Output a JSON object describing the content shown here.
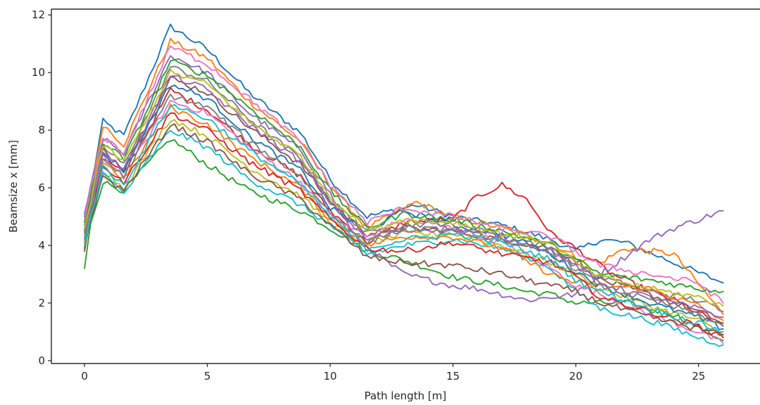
{
  "chart_data": {
    "type": "line",
    "title": "",
    "xlabel": "Path length [m]",
    "ylabel": "Beamsize x [mm]",
    "xlim": [
      -1.35,
      27.5
    ],
    "ylim": [
      -0.1,
      12.2
    ],
    "xticks": [
      0,
      5,
      10,
      15,
      20,
      25
    ],
    "yticks": [
      0,
      2,
      4,
      6,
      8,
      10,
      12
    ],
    "grid": false,
    "legend": "none",
    "colors": [
      "#1f77b4",
      "#ff7f0e",
      "#2ca02c",
      "#d62728",
      "#9467bd",
      "#8c564b",
      "#e377c2",
      "#7f7f7f",
      "#bcbd22",
      "#17becf"
    ],
    "series": [
      {
        "x": [
          0,
          0.25,
          0.75,
          1.6,
          3.5,
          5.0,
          6.7,
          8.8,
          10.0,
          11.5,
          13.5,
          15.0,
          17.0,
          19.0,
          20.0,
          21.0,
          22.0,
          24.0,
          26.0
        ],
        "y": [
          5.0,
          6.0,
          8.3,
          7.8,
          11.6,
          10.8,
          9.3,
          7.9,
          6.3,
          5.0,
          5.4,
          5.0,
          4.7,
          4.2,
          3.8,
          4.2,
          4.1,
          3.4,
          2.7
        ]
      },
      {
        "x": [
          0,
          0.25,
          0.75,
          1.6,
          3.5,
          5.0,
          6.7,
          8.8,
          10.0,
          11.5,
          13.5,
          15.0,
          17.0,
          19.0,
          20.0,
          21.0,
          22.0,
          24.0,
          26.0
        ],
        "y": [
          4.2,
          5.8,
          8.2,
          7.5,
          11.1,
          10.5,
          9.0,
          7.6,
          6.1,
          4.6,
          5.5,
          5.0,
          4.6,
          4.1,
          3.6,
          3.4,
          3.9,
          3.7,
          1.6
        ]
      },
      {
        "x": [
          0,
          0.25,
          0.75,
          1.6,
          3.5,
          5.0,
          6.7,
          8.8,
          10.0,
          11.5,
          13.0,
          15.0,
          17.0,
          18.0,
          19.0,
          20.0,
          22.0,
          24.0,
          26.0
        ],
        "y": [
          3.2,
          4.8,
          6.2,
          5.9,
          7.7,
          6.8,
          5.9,
          5.2,
          4.6,
          3.8,
          3.5,
          2.9,
          2.6,
          2.4,
          2.3,
          2.0,
          2.0,
          1.6,
          0.7
        ]
      },
      {
        "x": [
          0,
          0.25,
          0.75,
          1.6,
          3.5,
          5.0,
          6.7,
          8.8,
          10.0,
          11.5,
          13.0,
          15.0,
          16.0,
          17.0,
          18.0,
          19.0,
          20.0,
          21.5,
          22.5,
          24.0,
          26.0
        ],
        "y": [
          4.5,
          5.5,
          7.0,
          6.5,
          9.4,
          8.7,
          7.5,
          6.4,
          5.2,
          4.1,
          4.8,
          4.9,
          5.7,
          6.1,
          5.6,
          4.4,
          3.9,
          3.0,
          2.6,
          2.1,
          1.2
        ]
      },
      {
        "x": [
          0,
          0.25,
          0.75,
          1.6,
          3.5,
          5.0,
          6.7,
          8.8,
          10.0,
          11.0,
          12.0,
          13.0,
          14.0,
          15.0,
          16.0,
          17.0,
          18.0,
          19.0,
          20.0,
          21.0,
          22.0,
          23.0,
          24.0,
          25.0,
          26.0
        ],
        "y": [
          5.1,
          6.0,
          7.7,
          7.2,
          10.6,
          10.0,
          8.6,
          7.3,
          5.8,
          4.3,
          3.6,
          3.0,
          2.8,
          2.6,
          2.5,
          2.3,
          2.1,
          2.2,
          2.3,
          3.0,
          3.6,
          4.2,
          4.6,
          4.9,
          5.2
        ]
      },
      {
        "x": [
          0,
          0.25,
          0.75,
          1.6,
          3.5,
          5.0,
          6.7,
          8.8,
          10.0,
          11.5,
          13.0,
          15.0,
          17.0,
          19.0,
          20.0,
          21.0,
          23.0,
          25.0,
          26.0
        ],
        "y": [
          4.7,
          5.3,
          7.3,
          6.7,
          9.8,
          9.3,
          8.1,
          6.8,
          5.5,
          4.4,
          4.6,
          4.5,
          4.2,
          3.9,
          3.5,
          2.8,
          2.3,
          1.7,
          1.3
        ]
      },
      {
        "x": [
          0,
          0.25,
          0.75,
          1.6,
          3.5,
          5.0,
          6.7,
          8.8,
          10.0,
          11.5,
          13.0,
          15.0,
          17.0,
          19.0,
          20.0,
          21.0,
          23.0,
          25.0,
          26.0
        ],
        "y": [
          3.9,
          5.2,
          7.1,
          6.4,
          9.0,
          8.6,
          7.4,
          6.2,
          5.0,
          4.3,
          4.9,
          4.6,
          4.1,
          3.2,
          2.6,
          2.3,
          1.6,
          1.0,
          0.6
        ]
      },
      {
        "x": [
          0,
          0.25,
          0.75,
          1.6,
          3.5,
          5.0,
          6.7,
          8.8,
          10.0,
          11.5,
          13.0,
          15.0,
          17.0,
          19.0,
          20.0,
          21.0,
          23.0,
          25.0,
          26.0
        ],
        "y": [
          4.4,
          5.5,
          7.4,
          6.8,
          10.2,
          9.7,
          8.4,
          7.0,
          5.6,
          4.4,
          4.7,
          4.8,
          4.4,
          3.9,
          3.3,
          2.9,
          2.4,
          2.1,
          1.7
        ]
      },
      {
        "x": [
          0,
          0.25,
          0.75,
          1.6,
          3.5,
          5.0,
          6.7,
          8.8,
          10.0,
          11.5,
          13.0,
          15.0,
          17.0,
          19.0,
          20.0,
          21.0,
          23.0,
          25.0,
          26.0
        ],
        "y": [
          4.0,
          5.0,
          6.6,
          6.0,
          8.4,
          7.8,
          6.7,
          5.7,
          4.8,
          4.1,
          4.4,
          4.4,
          4.0,
          3.4,
          3.0,
          2.5,
          1.9,
          1.4,
          0.9
        ]
      },
      {
        "x": [
          0,
          0.25,
          0.75,
          1.6,
          3.5,
          5.0,
          6.7,
          8.8,
          10.0,
          11.5,
          13.0,
          15.0,
          17.0,
          19.0,
          20.0,
          21.0,
          23.0,
          25.0,
          26.0
        ],
        "y": [
          4.3,
          4.9,
          6.5,
          5.8,
          8.0,
          7.4,
          6.3,
          5.4,
          4.7,
          3.7,
          4.0,
          4.2,
          3.9,
          3.2,
          2.4,
          1.8,
          1.4,
          0.8,
          0.55
        ]
      },
      {
        "x": [
          0,
          0.25,
          0.75,
          1.6,
          3.5,
          5.0,
          6.7,
          8.8,
          10.0,
          11.5,
          13.0,
          15.0,
          17.0,
          19.0,
          20.0,
          21.0,
          23.0,
          25.0,
          26.0
        ],
        "y": [
          4.6,
          5.6,
          7.2,
          6.6,
          9.6,
          9.1,
          7.8,
          6.6,
          5.3,
          4.5,
          5.2,
          4.7,
          4.4,
          3.7,
          3.1,
          2.6,
          2.0,
          1.5,
          1.1
        ]
      },
      {
        "x": [
          0,
          0.25,
          0.75,
          1.6,
          3.5,
          5.0,
          6.7,
          8.8,
          10.0,
          11.5,
          13.0,
          15.0,
          17.0,
          19.0,
          20.0,
          21.0,
          23.0,
          25.0,
          26.0
        ],
        "y": [
          4.1,
          5.3,
          6.9,
          6.3,
          8.8,
          8.2,
          7.1,
          6.0,
          4.9,
          4.0,
          4.3,
          4.3,
          3.9,
          3.0,
          2.7,
          2.6,
          2.5,
          1.9,
          1.4
        ]
      },
      {
        "x": [
          0,
          0.25,
          0.75,
          1.6,
          3.5,
          5.0,
          6.7,
          8.8,
          10.0,
          11.5,
          13.0,
          15.0,
          17.0,
          19.0,
          20.0,
          21.0,
          23.0,
          25.0,
          26.0
        ],
        "y": [
          4.8,
          5.7,
          7.6,
          7.0,
          10.4,
          9.9,
          8.8,
          7.4,
          5.9,
          4.6,
          5.1,
          4.9,
          4.5,
          4.0,
          3.5,
          3.0,
          2.8,
          2.5,
          2.4
        ]
      },
      {
        "x": [
          0,
          0.25,
          0.75,
          1.6,
          3.5,
          5.0,
          6.7,
          8.8,
          10.0,
          11.5,
          13.0,
          15.0,
          17.0,
          19.0,
          20.0,
          21.0,
          23.0,
          25.0,
          26.0
        ],
        "y": [
          3.8,
          5.1,
          6.8,
          6.2,
          8.6,
          8.0,
          6.9,
          5.9,
          4.9,
          3.9,
          3.8,
          4.1,
          3.7,
          3.4,
          2.9,
          2.2,
          1.7,
          1.2,
          0.8
        ]
      },
      {
        "x": [
          0,
          0.25,
          0.75,
          1.6,
          3.5,
          5.0,
          6.7,
          8.8,
          10.0,
          11.5,
          13.0,
          15.0,
          17.0,
          19.0,
          20.0,
          21.0,
          23.0,
          25.0,
          26.0
        ],
        "y": [
          4.5,
          5.4,
          7.3,
          6.6,
          9.9,
          9.4,
          8.2,
          6.9,
          5.5,
          4.2,
          4.5,
          4.6,
          4.3,
          3.8,
          3.3,
          2.7,
          2.2,
          1.8,
          1.5
        ]
      },
      {
        "x": [
          0,
          0.25,
          0.75,
          1.6,
          3.5,
          5.0,
          6.7,
          8.8,
          10.0,
          11.5,
          13.0,
          15.0,
          17.0,
          19.0,
          20.0,
          21.0,
          23.0,
          25.0,
          26.0
        ],
        "y": [
          3.9,
          4.9,
          6.4,
          5.9,
          8.2,
          7.6,
          6.5,
          5.6,
          4.7,
          3.6,
          3.4,
          3.3,
          3.0,
          2.6,
          2.4,
          2.0,
          1.5,
          1.1,
          0.9
        ]
      },
      {
        "x": [
          0,
          0.25,
          0.75,
          1.6,
          3.5,
          5.0,
          6.7,
          8.8,
          10.0,
          11.5,
          13.0,
          15.0,
          17.0,
          19.0,
          20.0,
          21.0,
          23.0,
          25.0,
          26.0
        ],
        "y": [
          4.9,
          5.9,
          7.8,
          7.2,
          10.9,
          10.3,
          9.1,
          7.6,
          6.1,
          4.8,
          5.3,
          5.0,
          4.6,
          4.3,
          3.8,
          3.3,
          3.0,
          2.7,
          2.0
        ]
      },
      {
        "x": [
          0,
          0.25,
          0.75,
          1.6,
          3.5,
          5.0,
          6.7,
          8.8,
          10.0,
          11.5,
          13.0,
          15.0,
          17.0,
          19.0,
          20.0,
          21.0,
          23.0,
          25.0,
          26.0
        ],
        "y": [
          4.2,
          5.2,
          7.0,
          6.4,
          9.2,
          8.8,
          7.6,
          6.4,
          5.1,
          4.1,
          4.6,
          4.5,
          4.2,
          3.7,
          3.2,
          2.6,
          2.1,
          1.6,
          1.2
        ]
      },
      {
        "x": [
          0,
          0.25,
          0.75,
          1.6,
          3.5,
          5.0,
          6.7,
          8.8,
          10.0,
          11.5,
          13.0,
          15.0,
          17.0,
          19.0,
          20.0,
          21.0,
          23.0,
          25.0,
          26.0
        ],
        "y": [
          4.6,
          5.5,
          7.5,
          6.9,
          10.0,
          9.6,
          8.3,
          7.1,
          5.7,
          4.5,
          4.9,
          4.8,
          4.4,
          4.1,
          3.4,
          2.9,
          2.5,
          2.2,
          1.9
        ]
      },
      {
        "x": [
          0,
          0.25,
          0.75,
          1.6,
          3.5,
          5.0,
          6.7,
          8.8,
          10.0,
          11.5,
          13.0,
          15.0,
          17.0,
          19.0,
          20.0,
          21.0,
          23.0,
          25.0,
          26.0
        ],
        "y": [
          4.0,
          5.0,
          6.7,
          6.1,
          8.9,
          8.4,
          7.3,
          6.1,
          5.0,
          3.9,
          4.2,
          4.4,
          4.1,
          3.5,
          2.8,
          2.4,
          1.8,
          1.3,
          1.0
        ]
      }
    ]
  }
}
